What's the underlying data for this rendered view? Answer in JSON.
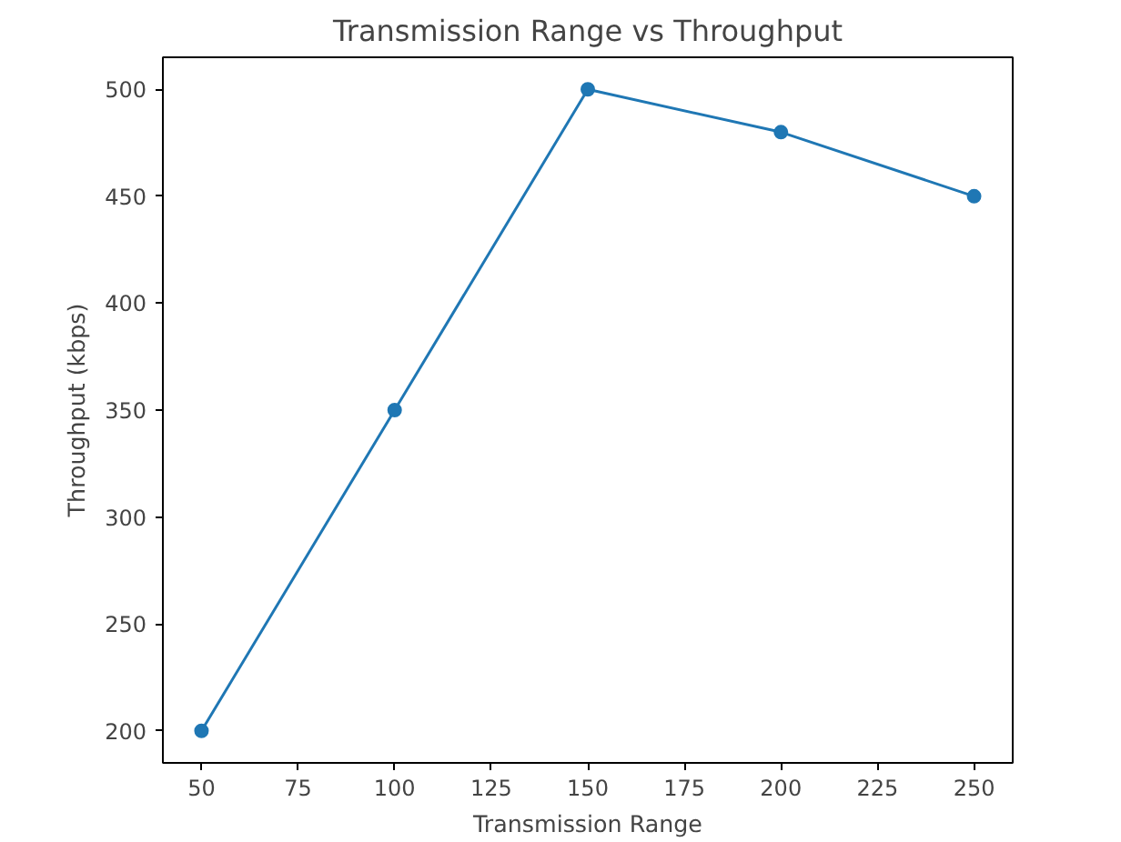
{
  "chart_data": {
    "type": "line",
    "title": "Transmission Range vs Throughput",
    "xlabel": "Transmission Range",
    "ylabel": "Throughput (kbps)",
    "x": [
      50,
      100,
      150,
      200,
      250
    ],
    "series": [
      {
        "color": "#1f77b4",
        "values": [
          200,
          350,
          500,
          480,
          450
        ]
      }
    ],
    "xlim": [
      40,
      260
    ],
    "xticks": [
      50,
      75,
      100,
      125,
      150,
      175,
      200,
      225,
      250
    ],
    "ylim": [
      185,
      515
    ],
    "yticks": [
      200,
      250,
      300,
      350,
      400,
      450,
      500
    ],
    "grid": false,
    "marker": "circle",
    "line_style": "solid"
  }
}
